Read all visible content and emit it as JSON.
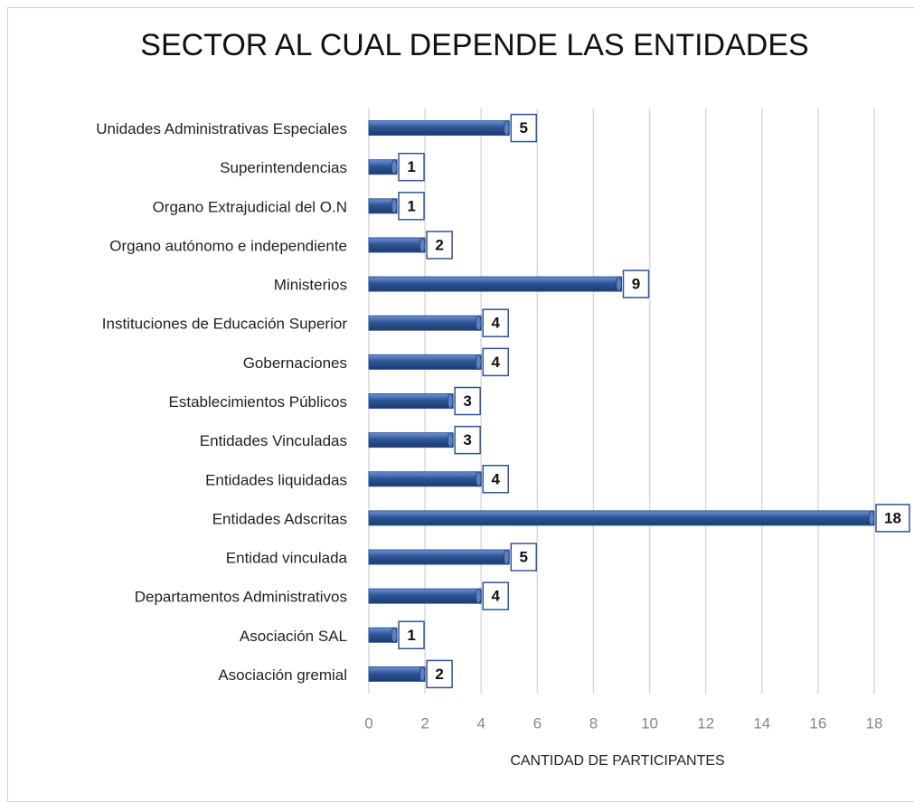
{
  "chart_data": {
    "type": "bar",
    "orientation": "horizontal",
    "title": "SECTOR AL CUAL DEPENDE LAS ENTIDADES",
    "x_label": "CANTIDAD DE PARTICIPANTES",
    "categories": [
      "Unidades Administrativas Especiales",
      "Superintendencias",
      "Organo Extrajudicial del O.N",
      "Organo autónomo e independiente",
      "Ministerios",
      "Instituciones de Educación Superior",
      "Gobernaciones",
      "Establecimientos Públicos",
      "Entidades Vinculadas",
      "Entidades liquidadas",
      "Entidades Adscritas",
      "Entidad vinculada",
      "Departamentos Administrativos",
      "Asociación SAL",
      "Asociación gremial"
    ],
    "values": [
      5,
      1,
      1,
      2,
      9,
      4,
      4,
      3,
      3,
      4,
      18,
      5,
      4,
      1,
      2
    ],
    "color": "#2e5597",
    "xlim": [
      0,
      18
    ],
    "xticks": [
      0,
      2,
      4,
      6,
      8,
      10,
      12,
      14,
      16,
      18
    ],
    "grid": true
  }
}
